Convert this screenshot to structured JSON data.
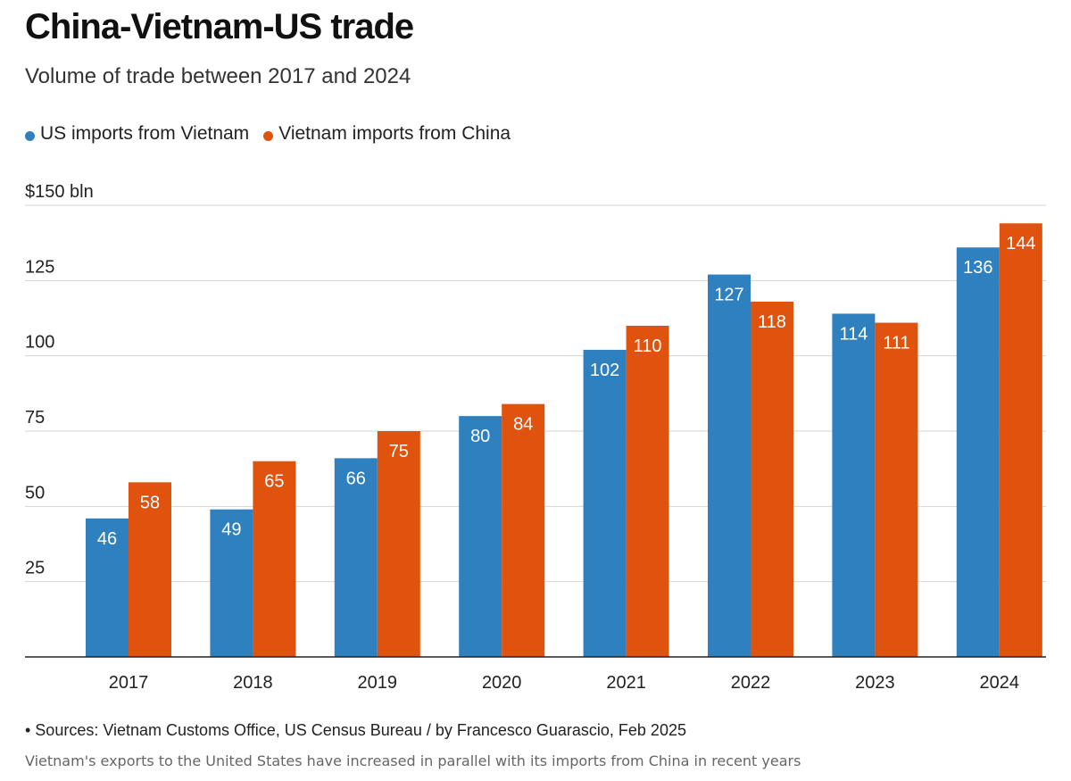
{
  "title": "China-Vietnam-US trade",
  "subtitle": "Volume of trade between 2017 and 2024",
  "colors": {
    "series_1": "#2f80bf",
    "series_2": "#e0530f",
    "grid": "#d4d4d4",
    "axis": "#222222"
  },
  "source_text": "• Sources: Vietnam Customs Office, US Census Bureau / by Francesco Guarascio, Feb 2025",
  "caption_text": "Vietnam's exports to the United States have increased in parallel with its imports from China in recent years",
  "chart_data": {
    "type": "bar",
    "title": "China-Vietnam-US trade",
    "ylabel": "$150 bln",
    "xlabel": "",
    "ylim": [
      0,
      150
    ],
    "yticks": [
      25,
      50,
      75,
      100,
      125,
      150
    ],
    "ytick_labels": [
      "25",
      "50",
      "75",
      "100",
      "125",
      "$150 bln"
    ],
    "categories": [
      "2017",
      "2018",
      "2019",
      "2020",
      "2021",
      "2022",
      "2023",
      "2024"
    ],
    "legend_position": "top-left",
    "grid": true,
    "series": [
      {
        "name": "US imports from Vietnam",
        "values": [
          46,
          49,
          66,
          80,
          102,
          127,
          114,
          136
        ]
      },
      {
        "name": "Vietnam imports from China",
        "values": [
          58,
          65,
          75,
          84,
          110,
          118,
          111,
          144
        ]
      }
    ]
  }
}
